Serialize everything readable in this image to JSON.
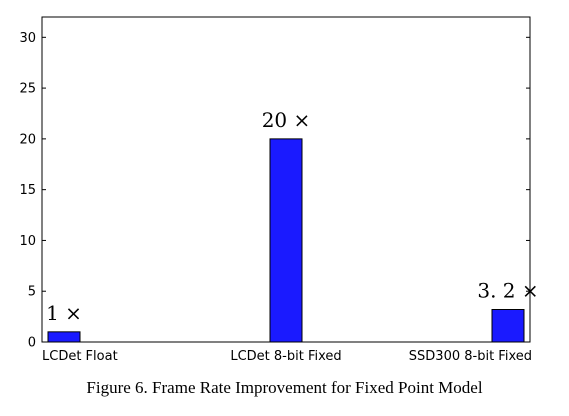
{
  "chart_data": {
    "type": "bar",
    "categories": [
      "LCDet Float",
      "LCDet 8-bit Fixed",
      "SSD300 8-bit Fixed"
    ],
    "values": [
      1,
      20,
      3.2
    ],
    "data_labels": [
      "1 ×",
      "20 ×",
      "3. 2 ×"
    ],
    "title": "",
    "xlabel": "",
    "ylabel": "",
    "ylim": [
      0,
      32
    ],
    "yticks": [
      0,
      5,
      10,
      15,
      20,
      25,
      30
    ],
    "grid": false,
    "bar_color": "#1a1aff",
    "caption": "Figure 6. Frame Rate Improvement for Fixed Point Model"
  }
}
